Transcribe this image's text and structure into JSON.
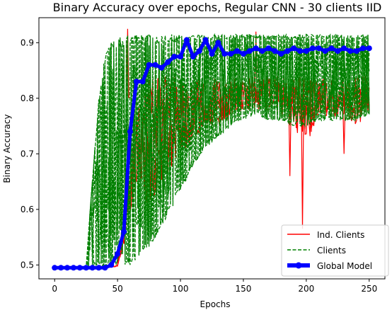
{
  "chart_data": {
    "type": "line",
    "title": "Binary Accuracy over epochs, Regular CNN - 30 clients IID",
    "xlabel": "Epochs",
    "ylabel": "Binary Accuracy",
    "xlim": [
      -12.5,
      262.5
    ],
    "ylim": [
      0.475,
      0.945
    ],
    "xticks": [
      0,
      50,
      100,
      150,
      200,
      250
    ],
    "yticks": [
      0.5,
      0.6,
      0.7,
      0.8,
      0.9
    ],
    "xtick_labels": [
      "0",
      "50",
      "100",
      "150",
      "200",
      "250"
    ],
    "ytick_labels": [
      "0.5",
      "0.6",
      "0.7",
      "0.8",
      "0.9"
    ],
    "grid": false,
    "legend_position": "lower-right",
    "series": [
      {
        "name": "Ind. Clients",
        "color": "#ff0000",
        "style": "solid",
        "summary_band": {
          "x": [
            0,
            40,
            50,
            55,
            60,
            65,
            70,
            75,
            80,
            90,
            100,
            110,
            120,
            130,
            140,
            150,
            160,
            170,
            180,
            190,
            200,
            210,
            220,
            230,
            240,
            250
          ],
          "low": [
            0.495,
            0.495,
            0.495,
            0.495,
            0.495,
            0.495,
            0.495,
            0.495,
            0.5,
            0.57,
            0.62,
            0.66,
            0.7,
            0.7,
            0.72,
            0.74,
            0.75,
            0.73,
            0.72,
            0.7,
            0.64,
            0.74,
            0.72,
            0.73,
            0.7,
            0.73
          ],
          "high": [
            0.495,
            0.495,
            0.5,
            0.6,
            0.75,
            0.8,
            0.82,
            0.84,
            0.84,
            0.84,
            0.84,
            0.84,
            0.84,
            0.84,
            0.84,
            0.84,
            0.84,
            0.84,
            0.84,
            0.84,
            0.84,
            0.84,
            0.84,
            0.84,
            0.84,
            0.84
          ]
        },
        "spikes": [
          [
            58,
            0.925
          ],
          [
            160,
            0.92
          ],
          [
            197,
            0.565
          ],
          [
            187,
            0.66
          ],
          [
            230,
            0.7
          ]
        ]
      },
      {
        "name": "Clients",
        "color": "#008000",
        "style": "dashed",
        "summary_band": {
          "x": [
            0,
            25,
            30,
            35,
            40,
            45,
            50,
            55,
            60,
            65,
            70,
            75,
            80,
            90,
            100,
            110,
            120,
            130,
            140,
            150,
            160,
            170,
            180,
            190,
            200,
            210,
            220,
            230,
            240,
            250
          ],
          "low": [
            0.495,
            0.495,
            0.495,
            0.495,
            0.495,
            0.495,
            0.5,
            0.5,
            0.5,
            0.51,
            0.52,
            0.53,
            0.55,
            0.59,
            0.63,
            0.68,
            0.71,
            0.73,
            0.75,
            0.76,
            0.77,
            0.76,
            0.76,
            0.75,
            0.75,
            0.76,
            0.76,
            0.76,
            0.76,
            0.77
          ],
          "high": [
            0.495,
            0.495,
            0.655,
            0.8,
            0.88,
            0.9,
            0.91,
            0.91,
            0.915,
            0.915,
            0.915,
            0.915,
            0.915,
            0.915,
            0.915,
            0.915,
            0.915,
            0.915,
            0.915,
            0.915,
            0.915,
            0.915,
            0.915,
            0.915,
            0.915,
            0.915,
            0.915,
            0.915,
            0.915,
            0.915
          ]
        }
      },
      {
        "name": "Global Model",
        "color": "#0000ff",
        "style": "solid-marker",
        "x": [
          0,
          5,
          10,
          15,
          20,
          25,
          30,
          35,
          40,
          45,
          50,
          55,
          60,
          65,
          70,
          75,
          80,
          85,
          90,
          95,
          100,
          105,
          110,
          115,
          120,
          125,
          130,
          135,
          140,
          145,
          150,
          155,
          160,
          165,
          170,
          175,
          180,
          185,
          190,
          195,
          200,
          205,
          210,
          215,
          220,
          225,
          230,
          235,
          240,
          245,
          250
        ],
        "values": [
          0.495,
          0.495,
          0.495,
          0.495,
          0.495,
          0.495,
          0.495,
          0.495,
          0.495,
          0.5,
          0.52,
          0.56,
          0.74,
          0.83,
          0.83,
          0.86,
          0.86,
          0.855,
          0.865,
          0.875,
          0.875,
          0.905,
          0.875,
          0.885,
          0.905,
          0.88,
          0.9,
          0.88,
          0.88,
          0.885,
          0.88,
          0.885,
          0.89,
          0.885,
          0.89,
          0.885,
          0.88,
          0.885,
          0.89,
          0.885,
          0.885,
          0.89,
          0.89,
          0.885,
          0.89,
          0.885,
          0.89,
          0.885,
          0.885,
          0.89,
          0.89
        ]
      }
    ],
    "legend": [
      {
        "label": "Ind. Clients",
        "color": "#ff0000",
        "style": "solid"
      },
      {
        "label": "Clients",
        "color": "#008000",
        "style": "dashed"
      },
      {
        "label": "Global Model",
        "color": "#0000ff",
        "style": "solid-marker"
      }
    ]
  }
}
